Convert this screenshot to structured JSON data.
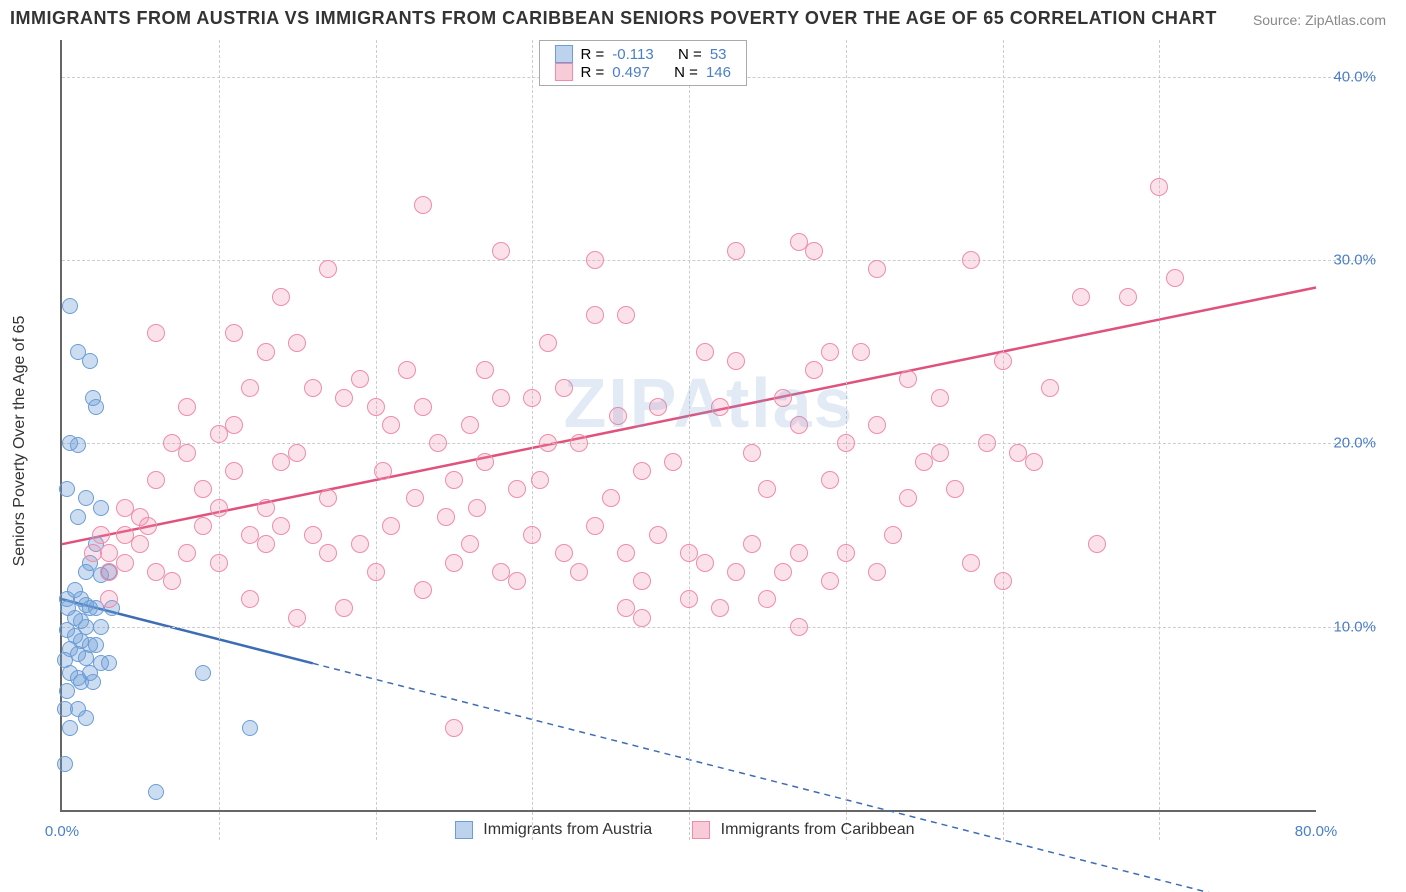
{
  "title": "IMMIGRANTS FROM AUSTRIA VS IMMIGRANTS FROM CARIBBEAN SENIORS POVERTY OVER THE AGE OF 65 CORRELATION CHART",
  "source": "Source: ZipAtlas.com",
  "watermark": "ZIPAtlas",
  "chart": {
    "type": "scatter",
    "xlim": [
      0,
      80
    ],
    "ylim": [
      0,
      42
    ],
    "x_ticks": [
      0,
      80
    ],
    "x_tick_labels": [
      "0.0%",
      "80.0%"
    ],
    "x_gridlines": [
      10,
      20,
      30,
      40,
      50,
      60,
      70
    ],
    "y_ticks": [
      10,
      20,
      30,
      40
    ],
    "y_tick_labels": [
      "10.0%",
      "20.0%",
      "30.0%",
      "40.0%"
    ],
    "ylabel": "Seniors Poverty Over the Age of 65",
    "background_color": "#ffffff",
    "grid_color": "#cccccc",
    "axis_color": "#666666",
    "tick_label_color": "#4a7ec9",
    "label_fontsize": 16,
    "title_fontsize": 18,
    "series": [
      {
        "name": "Immigrants from Austria",
        "color_fill": "rgba(108,157,214,0.35)",
        "color_stroke": "#6c9dd6",
        "marker_size": 16,
        "R": "-0.113",
        "N": "53",
        "trend": {
          "x1": 0,
          "y1": 11.5,
          "x2": 80,
          "y2": -6.0,
          "solid_until_x": 16,
          "color": "#3d6db5",
          "width": 2.5
        },
        "points": [
          [
            0.5,
            27.5
          ],
          [
            1.0,
            25.0
          ],
          [
            1.8,
            24.5
          ],
          [
            2.0,
            22.5
          ],
          [
            2.2,
            22.0
          ],
          [
            0.5,
            20.0
          ],
          [
            1.0,
            19.9
          ],
          [
            0.3,
            17.5
          ],
          [
            1.5,
            17.0
          ],
          [
            2.5,
            16.5
          ],
          [
            1.0,
            16.0
          ],
          [
            1.5,
            13.0
          ],
          [
            2.5,
            12.8
          ],
          [
            0.8,
            12.0
          ],
          [
            1.2,
            11.5
          ],
          [
            0.3,
            11.5
          ],
          [
            1.5,
            11.2
          ],
          [
            0.4,
            11.0
          ],
          [
            1.8,
            11.0
          ],
          [
            2.2,
            11.0
          ],
          [
            0.8,
            10.5
          ],
          [
            1.2,
            10.3
          ],
          [
            1.5,
            10.0
          ],
          [
            2.5,
            10.0
          ],
          [
            0.3,
            9.8
          ],
          [
            0.8,
            9.5
          ],
          [
            1.2,
            9.2
          ],
          [
            1.8,
            9.0
          ],
          [
            2.2,
            9.0
          ],
          [
            0.5,
            8.8
          ],
          [
            1.0,
            8.5
          ],
          [
            1.5,
            8.3
          ],
          [
            0.2,
            8.2
          ],
          [
            2.5,
            8.0
          ],
          [
            3.0,
            8.0
          ],
          [
            1.8,
            7.5
          ],
          [
            0.5,
            7.5
          ],
          [
            1.0,
            7.2
          ],
          [
            1.2,
            7.0
          ],
          [
            2.0,
            7.0
          ],
          [
            0.3,
            6.5
          ],
          [
            0.2,
            5.5
          ],
          [
            1.0,
            5.5
          ],
          [
            1.5,
            5.0
          ],
          [
            0.5,
            4.5
          ],
          [
            9.0,
            7.5
          ],
          [
            12.0,
            4.5
          ],
          [
            6.0,
            1.0
          ],
          [
            0.2,
            2.5
          ],
          [
            2.2,
            14.5
          ],
          [
            3.0,
            13.0
          ],
          [
            3.2,
            11.0
          ],
          [
            1.8,
            13.5
          ]
        ]
      },
      {
        "name": "Immigrants from Caribbean",
        "color_fill": "rgba(240,140,170,0.25)",
        "color_stroke": "#f08caa",
        "marker_size": 18,
        "R": "0.497",
        "N": "146",
        "trend": {
          "x1": 0,
          "y1": 14.5,
          "x2": 80,
          "y2": 28.5,
          "solid_until_x": 80,
          "color": "#e0527d",
          "width": 2.5
        },
        "points": [
          [
            70,
            34.0
          ],
          [
            23,
            33.0
          ],
          [
            28,
            30.5
          ],
          [
            34,
            30.0
          ],
          [
            43,
            30.5
          ],
          [
            47,
            31.0
          ],
          [
            48,
            30.5
          ],
          [
            52,
            29.5
          ],
          [
            58,
            30.0
          ],
          [
            71,
            29.0
          ],
          [
            65,
            28.0
          ],
          [
            68,
            28.0
          ],
          [
            17,
            29.5
          ],
          [
            14,
            28.0
          ],
          [
            6,
            26.0
          ],
          [
            11,
            26.0
          ],
          [
            13,
            25.0
          ],
          [
            15,
            25.5
          ],
          [
            34,
            27.0
          ],
          [
            36,
            27.0
          ],
          [
            41,
            25.0
          ],
          [
            43,
            24.5
          ],
          [
            49,
            25.0
          ],
          [
            48,
            24.0
          ],
          [
            51,
            25.0
          ],
          [
            60,
            24.5
          ],
          [
            63,
            23.0
          ],
          [
            54,
            23.5
          ],
          [
            56,
            22.5
          ],
          [
            16,
            23.0
          ],
          [
            18,
            22.5
          ],
          [
            19,
            23.5
          ],
          [
            20,
            22.0
          ],
          [
            22,
            24.0
          ],
          [
            23,
            22.0
          ],
          [
            26,
            21.0
          ],
          [
            28,
            22.5
          ],
          [
            30,
            22.5
          ],
          [
            31,
            20.0
          ],
          [
            32,
            23.0
          ],
          [
            33,
            20.0
          ],
          [
            25,
            18.0
          ],
          [
            14,
            19.0
          ],
          [
            15,
            19.5
          ],
          [
            11,
            18.5
          ],
          [
            9,
            17.5
          ],
          [
            7,
            20.0
          ],
          [
            8,
            19.5
          ],
          [
            6,
            18.0
          ],
          [
            4,
            15.0
          ],
          [
            4,
            13.5
          ],
          [
            3,
            13.0
          ],
          [
            3,
            14.0
          ],
          [
            5,
            16.0
          ],
          [
            5,
            14.5
          ],
          [
            6,
            13.0
          ],
          [
            7,
            12.5
          ],
          [
            8,
            14.0
          ],
          [
            10,
            13.5
          ],
          [
            12,
            15.0
          ],
          [
            13,
            14.5
          ],
          [
            14,
            15.5
          ],
          [
            16,
            15.0
          ],
          [
            17,
            14.0
          ],
          [
            19,
            14.5
          ],
          [
            20,
            13.0
          ],
          [
            21,
            15.5
          ],
          [
            23,
            12.0
          ],
          [
            25,
            13.5
          ],
          [
            26,
            14.5
          ],
          [
            28,
            13.0
          ],
          [
            29,
            12.5
          ],
          [
            30,
            15.0
          ],
          [
            32,
            14.0
          ],
          [
            33,
            13.0
          ],
          [
            34,
            15.5
          ],
          [
            36,
            14.0
          ],
          [
            37,
            12.5
          ],
          [
            38,
            15.0
          ],
          [
            40,
            14.0
          ],
          [
            41,
            13.5
          ],
          [
            43,
            13.0
          ],
          [
            44,
            14.5
          ],
          [
            46,
            13.0
          ],
          [
            47,
            14.0
          ],
          [
            49,
            12.5
          ],
          [
            50,
            14.0
          ],
          [
            52,
            13.0
          ],
          [
            53,
            15.0
          ],
          [
            37,
            10.5
          ],
          [
            42,
            11.0
          ],
          [
            47,
            10.0
          ],
          [
            58,
            13.5
          ],
          [
            60,
            12.5
          ],
          [
            62,
            19.0
          ],
          [
            55,
            19.0
          ],
          [
            50,
            20.0
          ],
          [
            47,
            21.0
          ],
          [
            44,
            19.5
          ],
          [
            39,
            19.0
          ],
          [
            37,
            18.5
          ],
          [
            35,
            17.0
          ],
          [
            29,
            17.5
          ],
          [
            27,
            19.0
          ],
          [
            24,
            20.0
          ],
          [
            11,
            21.0
          ],
          [
            10,
            20.5
          ],
          [
            8,
            22.0
          ],
          [
            12,
            11.5
          ],
          [
            15,
            10.5
          ],
          [
            18,
            11.0
          ],
          [
            36,
            11.0
          ],
          [
            40,
            11.5
          ],
          [
            45,
            11.5
          ],
          [
            35.5,
            21.5
          ],
          [
            38,
            22.0
          ],
          [
            42,
            22.0
          ],
          [
            46,
            22.5
          ],
          [
            52,
            21.0
          ],
          [
            56,
            19.5
          ],
          [
            59,
            20.0
          ],
          [
            61,
            19.5
          ],
          [
            3,
            11.5
          ],
          [
            2.5,
            15.0
          ],
          [
            2,
            14.0
          ],
          [
            4,
            16.5
          ],
          [
            5.5,
            15.5
          ],
          [
            30.5,
            18.0
          ],
          [
            24.5,
            16.0
          ],
          [
            22.5,
            17.0
          ],
          [
            26.5,
            16.5
          ],
          [
            20.5,
            18.5
          ],
          [
            25,
            4.5
          ],
          [
            10,
            16.5
          ],
          [
            13,
            16.5
          ],
          [
            17,
            17.0
          ],
          [
            21,
            21.0
          ],
          [
            9,
            15.5
          ],
          [
            31,
            25.5
          ],
          [
            12,
            23.0
          ],
          [
            27,
            24.0
          ],
          [
            45,
            17.5
          ],
          [
            49,
            18.0
          ],
          [
            54,
            17.0
          ],
          [
            57,
            17.5
          ],
          [
            66,
            14.5
          ]
        ]
      }
    ],
    "legend_top": {
      "rows": [
        {
          "sw": "blue",
          "r_label": "R =",
          "r_val": "-0.113",
          "n_label": "N =",
          "n_val": "53"
        },
        {
          "sw": "pink",
          "r_label": "R =",
          "r_val": "0.497",
          "n_label": "N =",
          "n_val": "146"
        }
      ]
    },
    "legend_bottom": [
      {
        "sw": "blue",
        "sw_fill": "rgba(108,157,214,0.45)",
        "sw_border": "#6c9dd6",
        "label": "Immigrants from Austria"
      },
      {
        "sw": "pink",
        "sw_fill": "rgba(240,140,170,0.45)",
        "sw_border": "#f08caa",
        "label": "Immigrants from Caribbean"
      }
    ]
  }
}
